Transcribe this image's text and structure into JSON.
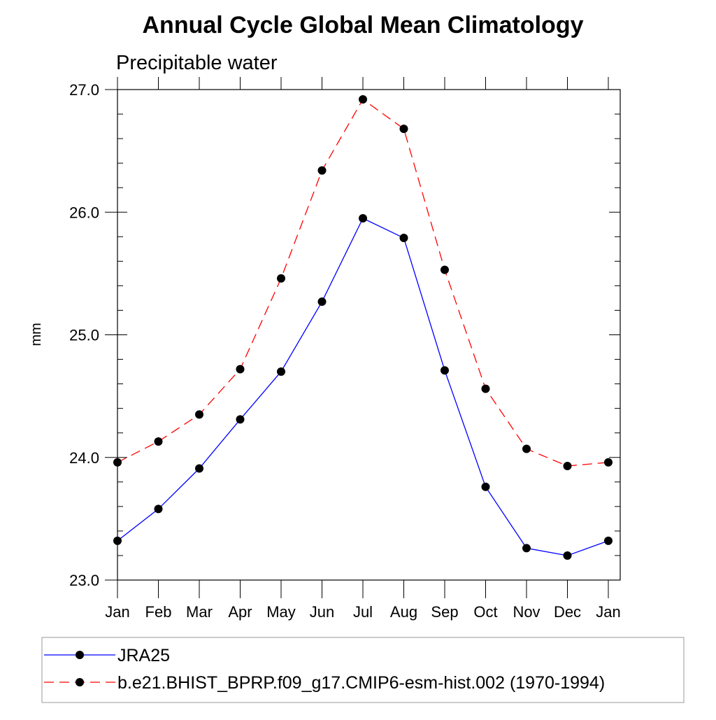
{
  "chart_data": {
    "type": "line",
    "title": "Annual Cycle Global Mean Climatology",
    "subtitle": "Precipitable water",
    "xlabel": "",
    "ylabel": "mm",
    "categories": [
      "Jan",
      "Feb",
      "Mar",
      "Apr",
      "May",
      "Jun",
      "Jul",
      "Aug",
      "Sep",
      "Oct",
      "Nov",
      "Dec",
      "Jan"
    ],
    "ylim": [
      23.0,
      27.0
    ],
    "yticks": [
      "23.0",
      "24.0",
      "25.0",
      "26.0",
      "27.0"
    ],
    "grid": false,
    "legend_position": "bottom",
    "series": [
      {
        "name": "JRA25",
        "values": [
          23.32,
          23.58,
          23.91,
          24.31,
          24.7,
          25.27,
          25.95,
          25.79,
          24.71,
          23.76,
          23.26,
          23.2,
          23.32
        ],
        "color": "#0000ff",
        "line_style": "solid",
        "marker": "filled-circle"
      },
      {
        "name": "b.e21.BHIST_BPRP.f09_g17.CMIP6-esm-hist.002 (1970-1994)",
        "values": [
          23.96,
          24.13,
          24.35,
          24.72,
          25.46,
          26.34,
          26.92,
          26.68,
          25.53,
          24.56,
          24.07,
          23.93,
          23.96
        ],
        "color": "#ff0000",
        "line_style": "dashed",
        "marker": "filled-circle"
      }
    ]
  }
}
